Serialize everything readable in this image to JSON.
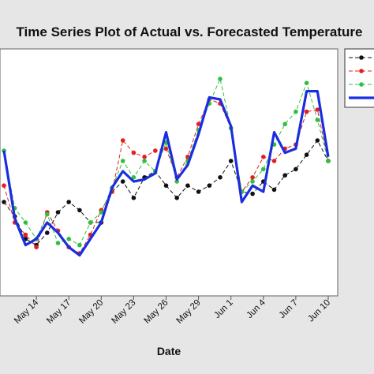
{
  "chart_data": {
    "type": "line",
    "title": "Time Series Plot of Actual vs. Forecasted Temperature",
    "xlabel": "Date",
    "ylabel": "",
    "x_tick_labels": [
      "May 14",
      "May 17",
      "May 20",
      "May 23",
      "May 26",
      "May 29",
      "Jun 1",
      "Jun 4",
      "Jun 7",
      "Jun 10"
    ],
    "x_tick_index": [
      3,
      6,
      9,
      12,
      15,
      18,
      21,
      24,
      27,
      30
    ],
    "ylim": [
      0,
      100
    ],
    "legend_position": "top-right",
    "series": [
      {
        "style": "dashed-marker",
        "color": "#111111",
        "values": [
          40,
          33,
          22,
          19,
          25,
          35,
          40,
          36,
          30,
          30,
          45,
          50,
          42,
          52,
          55,
          48,
          42,
          48,
          45,
          48,
          52,
          60,
          45,
          44,
          50,
          46,
          53,
          56,
          63,
          70,
          60
        ]
      },
      {
        "style": "dashed-marker",
        "color": "#e02020",
        "values": [
          48,
          30,
          24,
          18,
          35,
          26,
          18,
          15,
          24,
          36,
          45,
          70,
          64,
          62,
          65,
          66,
          52,
          62,
          78,
          90,
          88,
          76,
          45,
          52,
          62,
          60,
          66,
          68,
          84,
          85,
          60
        ]
      },
      {
        "style": "dashed-marker",
        "color": "#30c040",
        "values": [
          65,
          37,
          30,
          22,
          34,
          20,
          22,
          19,
          30,
          35,
          47,
          60,
          52,
          60,
          55,
          69,
          50,
          60,
          75,
          88,
          100,
          76,
          45,
          50,
          56,
          68,
          78,
          84,
          98,
          80,
          60
        ]
      },
      {
        "style": "solid-thick",
        "color": "#1a2ee0",
        "values": [
          65,
          32,
          19,
          22,
          30,
          25,
          18,
          14,
          22,
          30,
          47,
          55,
          50,
          51,
          54,
          74,
          51,
          58,
          73,
          91,
          90,
          77,
          40,
          48,
          45,
          74,
          64,
          66,
          94,
          94,
          62
        ]
      }
    ]
  }
}
